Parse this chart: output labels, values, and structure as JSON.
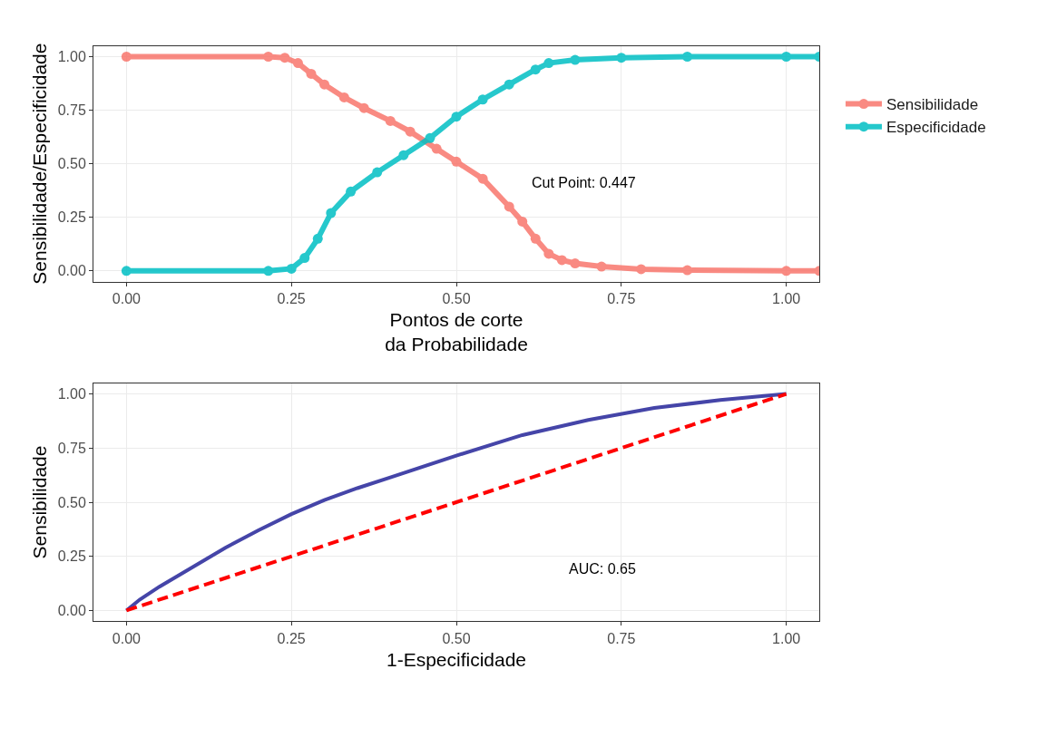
{
  "chart_data": [
    {
      "type": "line",
      "xlabel": "Pontos de corte\nda Probabilidade",
      "ylabel": "Sensibilidade/Especificidade",
      "annotations": [
        "Cut Point: 0.447"
      ],
      "xlim": [
        -0.05,
        1.05
      ],
      "ylim": [
        -0.05,
        1.05
      ],
      "xticks": [
        {
          "value": 0,
          "label": "0.00"
        },
        {
          "value": 0.25,
          "label": "0.25"
        },
        {
          "value": 0.5,
          "label": "0.50"
        },
        {
          "value": 0.75,
          "label": "0.75"
        },
        {
          "value": 1,
          "label": "1.00"
        }
      ],
      "yticks": [
        {
          "value": 0,
          "label": "0.00"
        },
        {
          "value": 0.25,
          "label": "0.25"
        },
        {
          "value": 0.5,
          "label": "0.50"
        },
        {
          "value": 0.75,
          "label": "0.75"
        },
        {
          "value": 1,
          "label": "1.00"
        }
      ],
      "grid": true,
      "legend": "right",
      "marker": "circle",
      "line_style": "solid",
      "series": [
        {
          "name": "Sensibilidade",
          "color": "#f8766d",
          "x": [
            0,
            0.215,
            0.24,
            0.26,
            0.28,
            0.3,
            0.33,
            0.36,
            0.4,
            0.43,
            0.47,
            0.5,
            0.54,
            0.58,
            0.6,
            0.62,
            0.64,
            0.66,
            0.68,
            0.72,
            0.78,
            0.85,
            1.0,
            1.05
          ],
          "values": [
            1,
            1,
            0.995,
            0.97,
            0.92,
            0.87,
            0.81,
            0.76,
            0.7,
            0.65,
            0.57,
            0.51,
            0.43,
            0.3,
            0.23,
            0.15,
            0.08,
            0.05,
            0.035,
            0.02,
            0.008,
            0.003,
            0,
            0
          ]
        },
        {
          "name": "Especificidade",
          "color": "#00bfc4",
          "x": [
            0,
            0.215,
            0.25,
            0.27,
            0.29,
            0.31,
            0.34,
            0.38,
            0.42,
            0.46,
            0.5,
            0.54,
            0.58,
            0.62,
            0.64,
            0.68,
            0.75,
            0.85,
            1.0,
            1.05
          ],
          "values": [
            0,
            0,
            0.01,
            0.06,
            0.15,
            0.27,
            0.37,
            0.46,
            0.54,
            0.62,
            0.72,
            0.8,
            0.87,
            0.94,
            0.97,
            0.985,
            0.995,
            1,
            1,
            1
          ]
        }
      ]
    },
    {
      "type": "line",
      "xlabel": "1-Especificidade",
      "ylabel": "Sensibilidade",
      "annotations": [
        "AUC: 0.65"
      ],
      "xlim": [
        -0.05,
        1.05
      ],
      "ylim": [
        -0.05,
        1.05
      ],
      "xticks": [
        {
          "value": 0,
          "label": "0.00"
        },
        {
          "value": 0.25,
          "label": "0.25"
        },
        {
          "value": 0.5,
          "label": "0.50"
        },
        {
          "value": 0.75,
          "label": "0.75"
        },
        {
          "value": 1,
          "label": "1.00"
        }
      ],
      "yticks": [
        {
          "value": 0,
          "label": "0.00"
        },
        {
          "value": 0.25,
          "label": "0.25"
        },
        {
          "value": 0.5,
          "label": "0.50"
        },
        {
          "value": 0.75,
          "label": "0.75"
        },
        {
          "value": 1,
          "label": "1.00"
        }
      ],
      "grid": true,
      "legend": false,
      "marker": "none",
      "series": [
        {
          "color": "#4545a8",
          "line_style": "solid",
          "x": [
            0,
            0.02,
            0.05,
            0.1,
            0.15,
            0.2,
            0.25,
            0.3,
            0.35,
            0.4,
            0.5,
            0.6,
            0.7,
            0.8,
            0.9,
            1
          ],
          "values": [
            0,
            0.05,
            0.11,
            0.2,
            0.29,
            0.37,
            0.445,
            0.51,
            0.565,
            0.615,
            0.715,
            0.81,
            0.88,
            0.935,
            0.972,
            1
          ]
        },
        {
          "color": "#ff0000",
          "line_style": "dashed",
          "x": [
            0,
            1
          ],
          "values": [
            0,
            1
          ]
        }
      ]
    }
  ]
}
